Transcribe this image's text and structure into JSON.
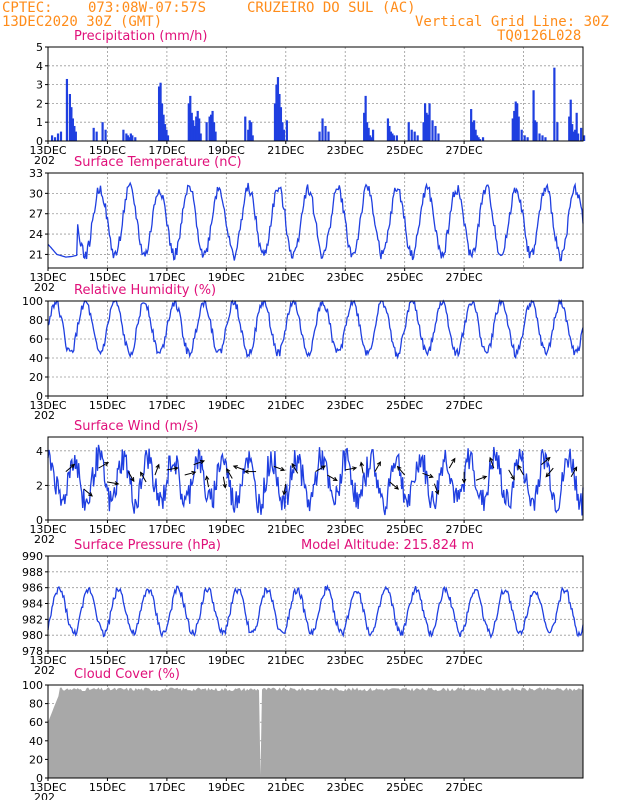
{
  "header": {
    "source": "CPTEC:",
    "coords": "073:08W-07:57S",
    "station": "CRUZEIRO DO SUL (AC)",
    "run": "13DEC2020 30Z (GMT)",
    "grid_note": "Vertical Grid Line: 30Z",
    "model_code": "TQ0126L028"
  },
  "colors": {
    "header": "#ff8c1a",
    "title": "#e0107a",
    "series": "#1f3fe0",
    "cloud": "#a8a8a8",
    "grid": "#999999"
  },
  "x_axis": {
    "tick_labels": [
      "13DEC",
      "15DEC",
      "17DEC",
      "19DEC",
      "21DEC",
      "23DEC",
      "25DEC",
      "27DEC"
    ],
    "year_fragment": "202"
  },
  "chart_data": [
    {
      "type": "bar",
      "title": "Precipitation (mm/h)",
      "ylim": [
        0,
        5
      ],
      "yticks": [
        "0",
        "1",
        "2",
        "3",
        "4",
        "5"
      ],
      "x_days": [
        0.1,
        0.2,
        0.3,
        0.4,
        0.6,
        0.7,
        0.75,
        0.8,
        0.85,
        0.9,
        1.5,
        1.6,
        1.8,
        1.9,
        2.5,
        2.6,
        2.65,
        2.7,
        2.75,
        2.8,
        2.9,
        3.7,
        3.75,
        3.8,
        3.85,
        3.9,
        3.95,
        4.0,
        4.7,
        4.75,
        4.8,
        4.85,
        4.9,
        4.95,
        5.0,
        5.05,
        5.1,
        5.3,
        5.4,
        5.45,
        5.5,
        5.55,
        5.6,
        6.6,
        6.7,
        6.75,
        6.8,
        6.85,
        7.6,
        7.65,
        7.7,
        7.75,
        7.8,
        7.85,
        7.9,
        8.0,
        9.1,
        9.2,
        9.3,
        9.4,
        10.6,
        10.65,
        10.7,
        10.75,
        10.8,
        10.85,
        10.9,
        11.4,
        11.45,
        11.5,
        11.55,
        11.6,
        11.7,
        12.1,
        12.2,
        12.3,
        12.4,
        12.6,
        12.65,
        12.7,
        12.75,
        12.8,
        12.9,
        13.0,
        13.1,
        14.2,
        14.25,
        14.3,
        14.35,
        14.4,
        14.45,
        14.5,
        14.6,
        15.6,
        15.65,
        15.7,
        15.75,
        15.8,
        15.9,
        16.0,
        16.1,
        16.3,
        16.35,
        16.4,
        16.5,
        16.6,
        16.7,
        17.0,
        17.1,
        17.5,
        17.55,
        17.6,
        17.65,
        17.7,
        17.75,
        17.8,
        17.9,
        18.0
      ],
      "values": [
        0.3,
        0.2,
        0.4,
        0.5,
        3.3,
        2.5,
        1.8,
        1.2,
        0.8,
        0.5,
        0.7,
        0.5,
        1.0,
        0.6,
        0.6,
        0.4,
        0.3,
        0.2,
        0.4,
        0.3,
        0.2,
        2.9,
        3.1,
        2.0,
        1.4,
        0.9,
        0.6,
        0.3,
        2.0,
        2.4,
        1.5,
        1.1,
        0.8,
        1.3,
        1.6,
        1.2,
        0.4,
        1.0,
        1.3,
        1.4,
        1.6,
        1.0,
        0.5,
        1.3,
        0.6,
        1.1,
        1.0,
        0.3,
        2.0,
        3.0,
        3.4,
        2.5,
        1.8,
        1.0,
        0.6,
        1.1,
        0.5,
        1.2,
        0.8,
        0.5,
        1.5,
        2.4,
        1.0,
        0.7,
        0.3,
        0.2,
        0.6,
        1.2,
        0.8,
        0.5,
        0.4,
        0.3,
        0.3,
        1.0,
        0.6,
        0.5,
        0.3,
        1.0,
        2.0,
        1.5,
        1.4,
        2.0,
        1.1,
        0.8,
        0.4,
        1.7,
        1.0,
        1.1,
        0.6,
        0.3,
        0.2,
        0.1,
        0.2,
        1.2,
        1.6,
        2.1,
        2.0,
        1.3,
        0.6,
        0.3,
        0.2,
        2.7,
        1.1,
        1.0,
        0.4,
        0.3,
        0.2,
        3.9,
        1.0,
        1.3,
        2.2,
        0.9,
        0.5,
        0.6,
        1.5,
        0.4,
        0.7,
        0.3
      ]
    },
    {
      "type": "line",
      "title": "Surface Temperature (nC)",
      "ylim": [
        19,
        33
      ],
      "yticks": [
        "21",
        "24",
        "27",
        "30",
        "33"
      ],
      "ytick_values": [
        21,
        24,
        27,
        30,
        33
      ],
      "phase": 2.0,
      "mean": 25.8,
      "amp": 4.9,
      "first_day_override": [
        [
          0,
          22.5
        ],
        [
          0.3,
          21.0
        ],
        [
          0.6,
          20.6
        ],
        [
          0.8,
          20.7
        ],
        [
          1.0,
          20.9
        ]
      ]
    },
    {
      "type": "line",
      "title": "Relative Humidity (%)",
      "ylim": [
        0,
        100
      ],
      "yticks": [
        "0",
        "20",
        "40",
        "60",
        "80",
        "100"
      ],
      "ytick_values": [
        0,
        20,
        40,
        60,
        80,
        100
      ],
      "phase": 0.0,
      "mean": 72,
      "amp": 27
    },
    {
      "type": "line",
      "title": "Surface Wind (m/s)",
      "ylim": [
        0,
        4.8
      ],
      "yticks": [
        "0",
        "2",
        "4"
      ],
      "ytick_values": [
        0,
        2,
        4
      ],
      "phase": 1.0,
      "mean": 2.3,
      "amp": 1.3,
      "arrows": [
        [
          0.6,
          2.8,
          40
        ],
        [
          1.2,
          1.8,
          -40
        ],
        [
          1.7,
          3.0,
          30
        ],
        [
          2.0,
          2.2,
          -10
        ],
        [
          2.7,
          2.8,
          -60
        ],
        [
          3.3,
          2.2,
          120
        ],
        [
          3.6,
          2.6,
          70
        ],
        [
          4.0,
          2.9,
          10
        ],
        [
          4.6,
          2.6,
          15
        ],
        [
          4.9,
          3.2,
          20
        ],
        [
          5.4,
          1.9,
          100
        ],
        [
          5.9,
          2.5,
          -80
        ],
        [
          6.2,
          2.4,
          120
        ],
        [
          6.6,
          2.9,
          160
        ],
        [
          7.0,
          2.8,
          180
        ],
        [
          7.6,
          3.1,
          -20
        ],
        [
          8.0,
          2.1,
          -100
        ],
        [
          8.4,
          2.7,
          120
        ],
        [
          9.0,
          2.8,
          30
        ],
        [
          9.4,
          2.6,
          -30
        ],
        [
          10.0,
          2.9,
          10
        ],
        [
          10.6,
          2.7,
          100
        ],
        [
          11.0,
          2.8,
          60
        ],
        [
          11.5,
          2.2,
          -40
        ],
        [
          12.0,
          2.6,
          130
        ],
        [
          12.6,
          2.7,
          -20
        ],
        [
          13.0,
          2.1,
          -70
        ],
        [
          13.5,
          3.0,
          60
        ],
        [
          14.0,
          2.8,
          -90
        ],
        [
          14.4,
          2.3,
          20
        ],
        [
          15.0,
          3.0,
          110
        ],
        [
          15.5,
          2.9,
          -60
        ],
        [
          16.0,
          2.6,
          120
        ],
        [
          16.6,
          3.2,
          40
        ],
        [
          17.0,
          3.0,
          -130
        ],
        [
          17.6,
          2.5,
          60
        ]
      ]
    },
    {
      "type": "line",
      "title": "Surface Pressure (hPa)",
      "annotation": "Model Altitude: 215.824 m",
      "ylim": [
        978,
        990
      ],
      "yticks": [
        "978",
        "980",
        "982",
        "984",
        "986",
        "988",
        "990"
      ],
      "ytick_values": [
        978,
        980,
        982,
        984,
        986,
        988,
        990
      ],
      "phase": 0.5,
      "mean": 983.0,
      "amp": 2.8
    },
    {
      "type": "area",
      "title": "Cloud Cover (%)",
      "ylim": [
        0,
        100
      ],
      "yticks": [
        "0",
        "20",
        "40",
        "60",
        "80",
        "100"
      ],
      "ytick_values": [
        0,
        20,
        40,
        60,
        80,
        100
      ],
      "base": 95
    }
  ]
}
